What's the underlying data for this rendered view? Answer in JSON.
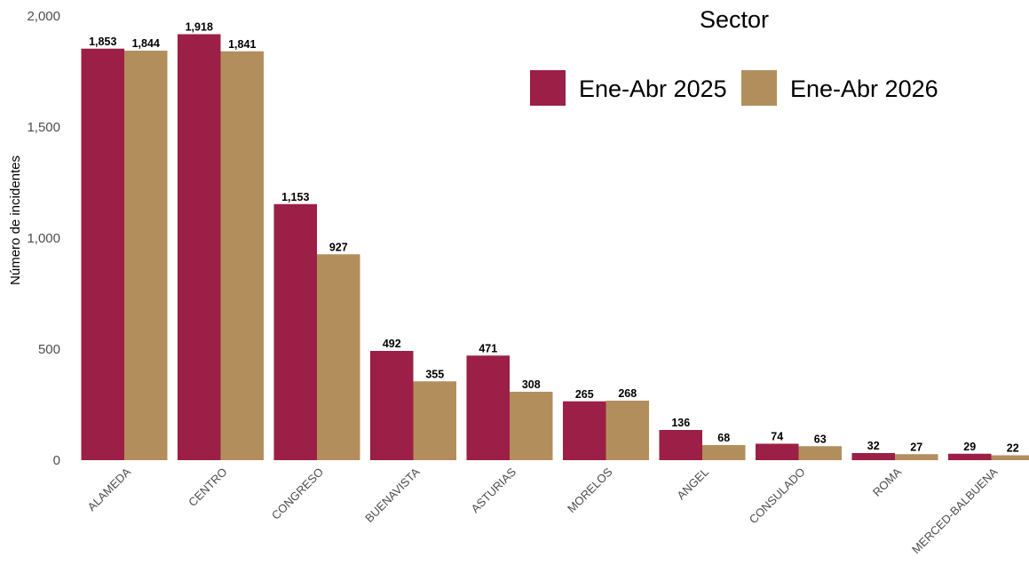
{
  "chart_data": {
    "type": "bar",
    "categories": [
      "ALAMEDA",
      "CENTRO",
      "CONGRESO",
      "BUENAVISTA",
      "ASTURIAS",
      "MORELOS",
      "ANGEL",
      "CONSULADO",
      "ROMA",
      "MERCED-BALBUENA"
    ],
    "series": [
      {
        "name": "Ene-Abr 2025",
        "color": "#9B1F46",
        "values": [
          1853,
          1918,
          1153,
          492,
          471,
          265,
          136,
          74,
          32,
          29
        ]
      },
      {
        "name": "Ene-Abr 2026",
        "color": "#B38E5D",
        "values": [
          1844,
          1841,
          927,
          355,
          308,
          268,
          68,
          63,
          27,
          22
        ]
      }
    ],
    "title": "",
    "legend_title": "Sector",
    "legend_position": "top-right",
    "xlabel": "",
    "ylabel": "Número de incidentes",
    "ylim": [
      0,
      2000
    ],
    "yticks": [
      0,
      500,
      1000,
      1500,
      2000
    ],
    "ytick_labels": [
      "0",
      "500",
      "1,000",
      "1,500",
      "2,000"
    ],
    "grid": false,
    "data_labels": true
  }
}
